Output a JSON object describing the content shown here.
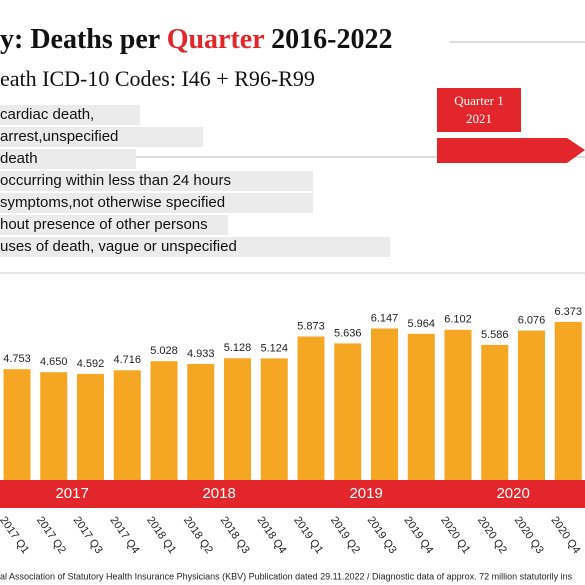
{
  "chart_data": {
    "type": "bar",
    "title": [
      {
        "text": "y: Deaths per ",
        "color": "#111111"
      },
      {
        "text": "Quarter",
        "color": "#e3262b"
      },
      {
        "text": " 2016-2022",
        "color": "#111111"
      }
    ],
    "subtitle": "eath ICD-10 Codes: I46 + R96-R99",
    "code_lines": [
      "cardiac death,",
      "arrest,unspecified",
      " death",
      "occurring within less than 24 hours",
      "symptoms,not otherwise specified",
      "hout presence of other persons",
      "uses of death, vague or unspecified"
    ],
    "callout": {
      "lines": [
        "Quarter 1",
        "2021"
      ],
      "color": "#e3262b"
    },
    "categories": [
      "2017 Q1",
      "2017 Q2",
      "2017 Q3",
      "2017 Q4",
      "2018 Q1",
      "2018 Q2",
      "2018 Q3",
      "2018 Q4",
      "2019 Q1",
      "2019 Q2",
      "2019 Q3",
      "2019 Q4",
      "2020 Q1",
      "2020 Q2",
      "2020 Q3",
      "2020 Q4"
    ],
    "values": [
      4.753,
      4.65,
      4.592,
      4.716,
      5.028,
      4.933,
      5.128,
      5.124,
      5.873,
      5.636,
      6.147,
      5.964,
      6.102,
      5.586,
      6.076,
      6.373
    ],
    "value_labels": [
      "4.753",
      "4.650",
      "4.592",
      "4.716",
      "5.028",
      "4.933",
      "5.128",
      "5.124",
      "5.873",
      "5.636",
      "6.147",
      "5.964",
      "6.102",
      "5.586",
      "6.076",
      "6.373"
    ],
    "color": "#f5a623",
    "year_groups": [
      {
        "label": "2017",
        "color": "#e3262b"
      },
      {
        "label": "2018",
        "color": "#e3262b"
      },
      {
        "label": "2019",
        "color": "#e3262b"
      },
      {
        "label": "2020",
        "color": "#e3262b"
      }
    ],
    "source": "al Association of Statutory Health Insurance Physicians (KBV) Publication dated 29.11.2022 / Diagnostic data of approx. 72 million statutorily ins"
  }
}
